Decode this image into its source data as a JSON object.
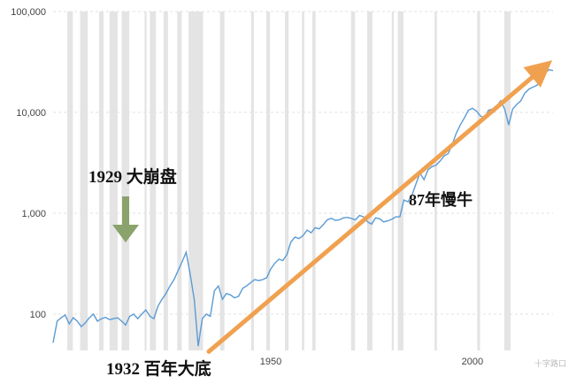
{
  "chart_data": {
    "type": "line",
    "title": "",
    "xlabel": "",
    "ylabel": "",
    "y_scale": "log",
    "xlim": [
      1896,
      2020
    ],
    "ylim": [
      60,
      100000
    ],
    "grid": true,
    "y_ticks": [
      {
        "value": 100,
        "label": "100"
      },
      {
        "value": 1000,
        "label": "1,000"
      },
      {
        "value": 10000,
        "label": "10,000"
      },
      {
        "value": 100000,
        "label": "100,000"
      }
    ],
    "x_ticks": [
      {
        "value": 1950,
        "label": "1950"
      },
      {
        "value": 2000,
        "label": "2000"
      }
    ],
    "recessions": [
      [
        1899.5,
        1900.9
      ],
      [
        1902.7,
        1904.6
      ],
      [
        1907.4,
        1908.5
      ],
      [
        1910.0,
        1912.0
      ],
      [
        1913.0,
        1914.9
      ],
      [
        1918.7,
        1919.2
      ],
      [
        1920.0,
        1921.5
      ],
      [
        1923.4,
        1924.5
      ],
      [
        1926.8,
        1927.9
      ],
      [
        1929.6,
        1933.2
      ],
      [
        1937.4,
        1938.5
      ],
      [
        1945.1,
        1945.8
      ],
      [
        1948.9,
        1949.8
      ],
      [
        1953.5,
        1954.4
      ],
      [
        1957.7,
        1958.3
      ],
      [
        1960.3,
        1961.1
      ],
      [
        1969.9,
        1970.9
      ],
      [
        1973.9,
        1975.2
      ],
      [
        1980.0,
        1980.5
      ],
      [
        1981.5,
        1982.9
      ],
      [
        1990.6,
        1991.2
      ],
      [
        2001.2,
        2001.9
      ],
      [
        2007.9,
        2009.5
      ]
    ],
    "series": [
      {
        "color": "#5b9bd5",
        "points": [
          [
            1896,
            52
          ],
          [
            1897,
            85
          ],
          [
            1898,
            92
          ],
          [
            1899,
            98
          ],
          [
            1900,
            80
          ],
          [
            1901,
            92
          ],
          [
            1902,
            85
          ],
          [
            1903,
            75
          ],
          [
            1904,
            82
          ],
          [
            1905,
            92
          ],
          [
            1906,
            100
          ],
          [
            1907,
            85
          ],
          [
            1908,
            90
          ],
          [
            1909,
            93
          ],
          [
            1910,
            88
          ],
          [
            1911,
            90
          ],
          [
            1912,
            92
          ],
          [
            1913,
            85
          ],
          [
            1914,
            78
          ],
          [
            1915,
            95
          ],
          [
            1916,
            100
          ],
          [
            1917,
            90
          ],
          [
            1918,
            100
          ],
          [
            1919,
            110
          ],
          [
            1920,
            95
          ],
          [
            1921,
            90
          ],
          [
            1922,
            120
          ],
          [
            1923,
            140
          ],
          [
            1924,
            160
          ],
          [
            1925,
            190
          ],
          [
            1926,
            220
          ],
          [
            1927,
            270
          ],
          [
            1928,
            330
          ],
          [
            1929,
            410
          ],
          [
            1930,
            250
          ],
          [
            1931,
            140
          ],
          [
            1932,
            48
          ],
          [
            1933,
            90
          ],
          [
            1934,
            100
          ],
          [
            1935,
            95
          ],
          [
            1936,
            170
          ],
          [
            1937,
            190
          ],
          [
            1938,
            140
          ],
          [
            1939,
            160
          ],
          [
            1940,
            155
          ],
          [
            1941,
            145
          ],
          [
            1942,
            150
          ],
          [
            1943,
            180
          ],
          [
            1944,
            190
          ],
          [
            1945,
            205
          ],
          [
            1946,
            220
          ],
          [
            1947,
            215
          ],
          [
            1948,
            220
          ],
          [
            1949,
            230
          ],
          [
            1950,
            280
          ],
          [
            1951,
            320
          ],
          [
            1952,
            350
          ],
          [
            1953,
            340
          ],
          [
            1954,
            390
          ],
          [
            1955,
            520
          ],
          [
            1956,
            580
          ],
          [
            1957,
            560
          ],
          [
            1958,
            600
          ],
          [
            1959,
            680
          ],
          [
            1960,
            640
          ],
          [
            1961,
            720
          ],
          [
            1962,
            700
          ],
          [
            1963,
            770
          ],
          [
            1964,
            860
          ],
          [
            1965,
            890
          ],
          [
            1966,
            850
          ],
          [
            1967,
            860
          ],
          [
            1968,
            900
          ],
          [
            1969,
            910
          ],
          [
            1970,
            890
          ],
          [
            1971,
            860
          ],
          [
            1972,
            950
          ],
          [
            1973,
            920
          ],
          [
            1974,
            820
          ],
          [
            1975,
            780
          ],
          [
            1976,
            900
          ],
          [
            1977,
            880
          ],
          [
            1978,
            820
          ],
          [
            1979,
            840
          ],
          [
            1980,
            870
          ],
          [
            1981,
            920
          ],
          [
            1982,
            920
          ],
          [
            1983,
            1350
          ],
          [
            1984,
            1300
          ],
          [
            1985,
            1500
          ],
          [
            1986,
            1950
          ],
          [
            1987,
            2500
          ],
          [
            1988,
            2150
          ],
          [
            1989,
            2700
          ],
          [
            1990,
            2900
          ],
          [
            1991,
            3000
          ],
          [
            1992,
            3300
          ],
          [
            1993,
            3700
          ],
          [
            1994,
            3900
          ],
          [
            1995,
            4800
          ],
          [
            1996,
            6200
          ],
          [
            1997,
            7500
          ],
          [
            1998,
            8800
          ],
          [
            1999,
            10500
          ],
          [
            2000,
            11000
          ],
          [
            2001,
            10300
          ],
          [
            2002,
            9200
          ],
          [
            2003,
            8800
          ],
          [
            2004,
            10500
          ],
          [
            2005,
            10800
          ],
          [
            2006,
            11500
          ],
          [
            2007,
            13000
          ],
          [
            2008,
            10800
          ],
          [
            2009,
            7500
          ],
          [
            2010,
            10800
          ],
          [
            2011,
            12000
          ],
          [
            2012,
            13000
          ],
          [
            2013,
            15500
          ],
          [
            2014,
            17000
          ],
          [
            2015,
            17800
          ],
          [
            2016,
            18500
          ],
          [
            2017,
            22000
          ],
          [
            2018,
            24500
          ],
          [
            2019,
            26500
          ],
          [
            2020,
            26000
          ]
        ]
      }
    ],
    "trend_arrow": {
      "color": "#f0a150",
      "from": [
        1932,
        48
      ],
      "to": [
        2019,
        30000
      ]
    },
    "crash_arrow": {
      "color": "#8aa26b"
    },
    "annotations": {
      "crash_1929": "1929 大崩盘",
      "bottom_1932": "1932 百年大底",
      "bull_87yr": "87年慢牛"
    },
    "watermark": "十字路口"
  }
}
